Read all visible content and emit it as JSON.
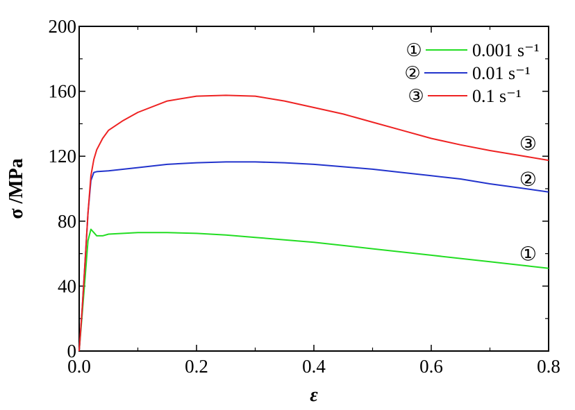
{
  "chart_data": {
    "type": "line",
    "xlabel": "ε",
    "ylabel": "σ /MPa",
    "xlim": [
      0.0,
      0.8
    ],
    "ylim": [
      0,
      200
    ],
    "xticks": [
      "0.0",
      "0.2",
      "0.4",
      "0.6",
      "0.8"
    ],
    "yticks": [
      "0",
      "40",
      "80",
      "120",
      "160",
      "200"
    ],
    "grid": false,
    "legend_position": "top-right",
    "series": [
      {
        "name": "0.001 s⁻¹",
        "marker": "①",
        "color": "#22dd22",
        "x": [
          0.0,
          0.005,
          0.01,
          0.015,
          0.02,
          0.025,
          0.03,
          0.04,
          0.05,
          0.1,
          0.15,
          0.2,
          0.25,
          0.3,
          0.35,
          0.4,
          0.45,
          0.5,
          0.55,
          0.6,
          0.65,
          0.7,
          0.75,
          0.8
        ],
        "y": [
          0,
          22,
          45,
          68,
          75,
          73,
          71,
          71,
          72,
          73,
          73,
          72.5,
          71.5,
          70,
          68.5,
          67,
          65,
          63,
          61,
          59,
          57,
          55,
          53,
          51
        ]
      },
      {
        "name": "0.01 s⁻¹",
        "marker": "②",
        "color": "#2233cc",
        "x": [
          0.0,
          0.005,
          0.01,
          0.015,
          0.02,
          0.025,
          0.03,
          0.05,
          0.1,
          0.15,
          0.2,
          0.25,
          0.3,
          0.35,
          0.4,
          0.45,
          0.5,
          0.55,
          0.6,
          0.65,
          0.7,
          0.75,
          0.8
        ],
        "y": [
          0,
          25,
          55,
          85,
          105,
          110,
          110.5,
          111,
          113,
          115,
          116,
          116.5,
          116.5,
          116,
          115,
          113.5,
          112,
          110,
          108,
          106,
          103,
          100.5,
          98
        ]
      },
      {
        "name": "0.1 s⁻¹",
        "marker": "③",
        "color": "#ee2222",
        "x": [
          0.0,
          0.005,
          0.01,
          0.015,
          0.02,
          0.025,
          0.03,
          0.04,
          0.05,
          0.075,
          0.1,
          0.15,
          0.2,
          0.25,
          0.3,
          0.35,
          0.4,
          0.45,
          0.5,
          0.55,
          0.6,
          0.65,
          0.7,
          0.75,
          0.8
        ],
        "y": [
          0,
          25,
          55,
          85,
          108,
          118,
          124,
          131,
          136,
          142,
          147,
          154,
          157,
          157.5,
          157,
          154,
          150,
          146,
          141,
          136,
          131,
          127,
          123.5,
          120.5,
          117.5
        ]
      }
    ],
    "curve_labels": [
      {
        "text": "③",
        "x": 0.765,
        "y": 128
      },
      {
        "text": "②",
        "x": 0.765,
        "y": 106
      },
      {
        "text": "①",
        "x": 0.765,
        "y": 60
      }
    ]
  }
}
